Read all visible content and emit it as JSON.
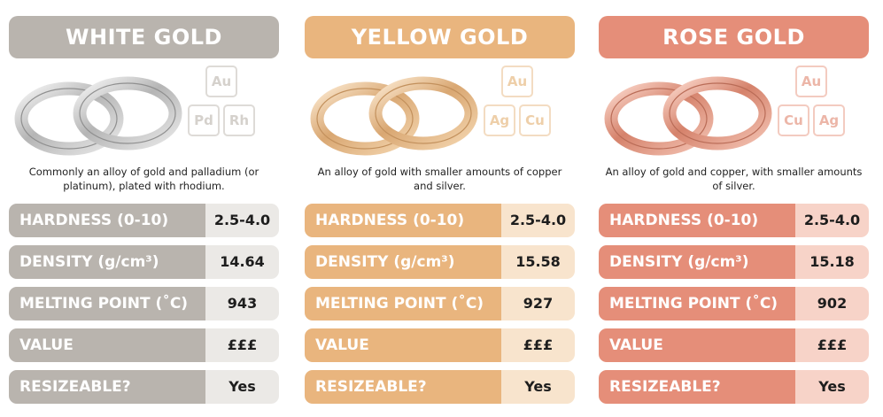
{
  "columns": [
    {
      "title": "WHITE GOLD",
      "elements": [
        "Au",
        "Pd",
        "Rh"
      ],
      "description": "Commonly an alloy of gold and palladium (or platinum), plated with rhodium.",
      "rows": [
        {
          "label": "HARDNESS (0-10)",
          "value": "2.5-4.0"
        },
        {
          "label": "DENSITY (g/cm³)",
          "value": "14.64"
        },
        {
          "label": "MELTING POINT (˚C)",
          "value": "943"
        },
        {
          "label": "VALUE",
          "value": "£££"
        },
        {
          "label": "RESIZEABLE?",
          "value": "Yes"
        }
      ]
    },
    {
      "title": "YELLOW GOLD",
      "elements": [
        "Au",
        "Ag",
        "Cu"
      ],
      "description": "An alloy of gold with smaller amounts of copper and silver.",
      "rows": [
        {
          "label": "HARDNESS (0-10)",
          "value": "2.5-4.0"
        },
        {
          "label": "DENSITY (g/cm³)",
          "value": "15.58"
        },
        {
          "label": "MELTING POINT (˚C)",
          "value": "927"
        },
        {
          "label": "VALUE",
          "value": "£££"
        },
        {
          "label": "RESIZEABLE?",
          "value": "Yes"
        }
      ]
    },
    {
      "title": "ROSE GOLD",
      "elements": [
        "Au",
        "Cu",
        "Ag"
      ],
      "description": "An alloy of gold and copper, with smaller amounts of silver.",
      "rows": [
        {
          "label": "HARDNESS (0-10)",
          "value": "2.5-4.0"
        },
        {
          "label": "DENSITY (g/cm³)",
          "value": "15.18"
        },
        {
          "label": "MELTING POINT (˚C)",
          "value": "902"
        },
        {
          "label": "VALUE",
          "value": "£££"
        },
        {
          "label": "RESIZEABLE?",
          "value": "Yes"
        }
      ]
    }
  ],
  "colors": {
    "white_gold": "#b9b4ae",
    "yellow_gold": "#e9b57e",
    "rose_gold": "#e58e79"
  }
}
